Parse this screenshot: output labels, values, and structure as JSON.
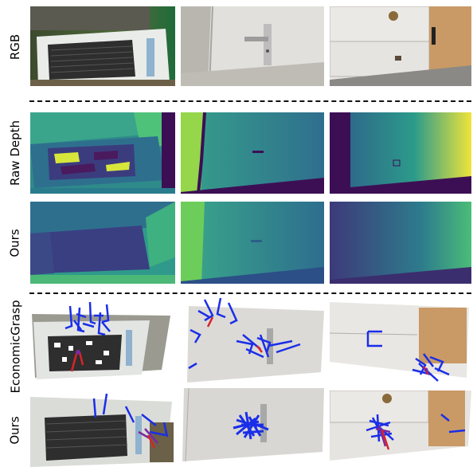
{
  "figure": {
    "row_labels": {
      "rgb": "RGB",
      "raw_depth": "Raw Depth",
      "ours_depth": "Ours",
      "economic_grasp": "EconomicGrasp",
      "ours_grasp": "Ours"
    }
  }
}
